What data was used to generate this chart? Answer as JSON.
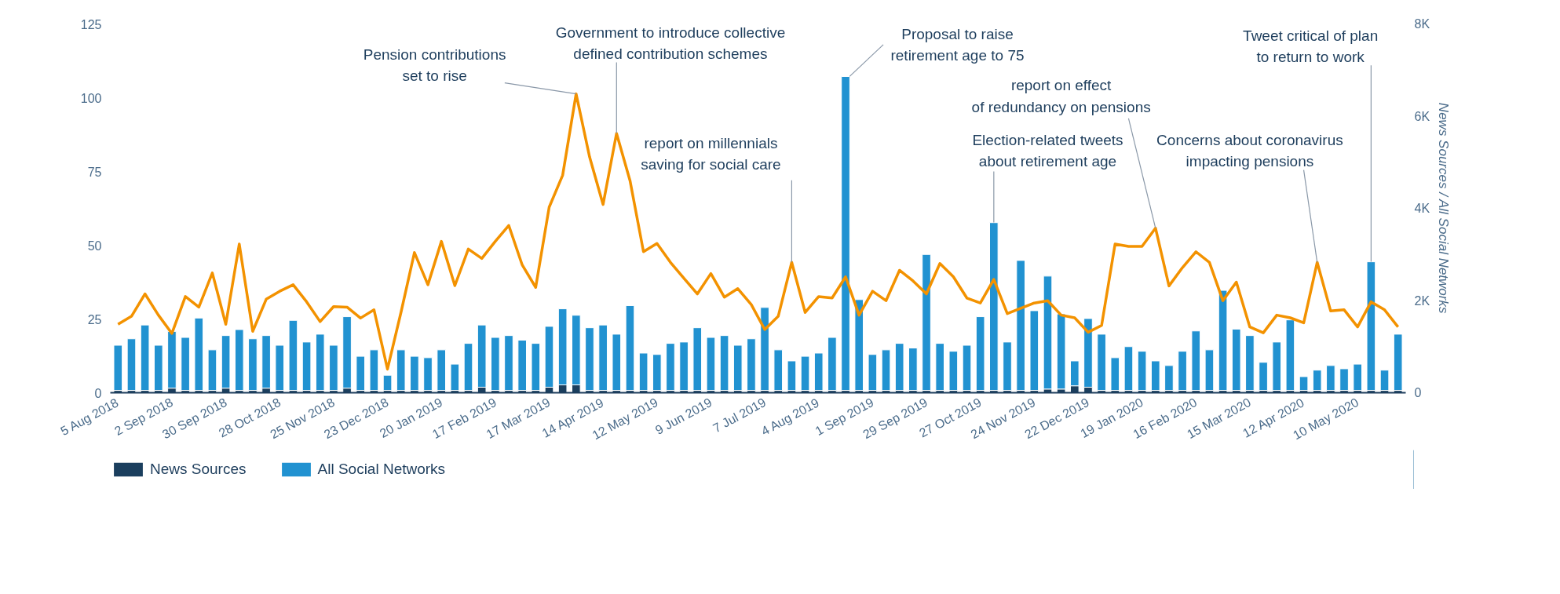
{
  "chart_data": {
    "type": "bar",
    "stacked": true,
    "legend": "bottom",
    "y2label": "News Sources / All Social Networks",
    "x": [
      "2018-08-05",
      "2018-08-12",
      "2018-08-19",
      "2018-08-26",
      "2018-09-02",
      "2018-09-09",
      "2018-09-16",
      "2018-09-23",
      "2018-09-30",
      "2018-10-07",
      "2018-10-14",
      "2018-10-21",
      "2018-10-28",
      "2018-11-04",
      "2018-11-11",
      "2018-11-18",
      "2018-11-25",
      "2018-12-02",
      "2018-12-09",
      "2018-12-16",
      "2018-12-23",
      "2018-12-30",
      "2019-01-06",
      "2019-01-13",
      "2019-01-20",
      "2019-01-27",
      "2019-02-03",
      "2019-02-10",
      "2019-02-17",
      "2019-02-24",
      "2019-03-03",
      "2019-03-10",
      "2019-03-17",
      "2019-03-24",
      "2019-03-31",
      "2019-04-07",
      "2019-04-14",
      "2019-04-21",
      "2019-04-28",
      "2019-05-05",
      "2019-05-12",
      "2019-05-19",
      "2019-05-26",
      "2019-06-02",
      "2019-06-09",
      "2019-06-16",
      "2019-06-23",
      "2019-06-30",
      "2019-07-07",
      "2019-07-14",
      "2019-07-21",
      "2019-07-28",
      "2019-08-04",
      "2019-08-11",
      "2019-08-18",
      "2019-08-25",
      "2019-09-01",
      "2019-09-08",
      "2019-09-15",
      "2019-09-22",
      "2019-09-29",
      "2019-10-06",
      "2019-10-13",
      "2019-10-20",
      "2019-10-27",
      "2019-11-03",
      "2019-11-10",
      "2019-11-17",
      "2019-11-24",
      "2019-12-01",
      "2019-12-08",
      "2019-12-15",
      "2019-12-22",
      "2019-12-29",
      "2020-01-05",
      "2020-01-12",
      "2020-01-19",
      "2020-01-26",
      "2020-02-02",
      "2020-02-09",
      "2020-02-16",
      "2020-02-23",
      "2020-03-01",
      "2020-03-08",
      "2020-03-15",
      "2020-03-22",
      "2020-03-29",
      "2020-04-05",
      "2020-04-12",
      "2020-04-19",
      "2020-04-26",
      "2020-05-03",
      "2020-05-10",
      "2020-05-17",
      "2020-05-24",
      "2020-05-31"
    ],
    "series": [
      {
        "name": "News Sources",
        "axis": "y2",
        "color": "#1b3f5e",
        "values": [
          50,
          50,
          50,
          50,
          100,
          50,
          50,
          50,
          100,
          50,
          50,
          100,
          50,
          50,
          50,
          50,
          50,
          100,
          50,
          50,
          50,
          50,
          50,
          50,
          50,
          50,
          50,
          120,
          50,
          50,
          50,
          50,
          120,
          170,
          170,
          50,
          50,
          50,
          50,
          50,
          50,
          50,
          50,
          50,
          50,
          50,
          50,
          50,
          50,
          50,
          50,
          50,
          50,
          50,
          50,
          50,
          50,
          50,
          50,
          50,
          50,
          50,
          50,
          50,
          50,
          50,
          50,
          50,
          50,
          80,
          80,
          150,
          120,
          50,
          50,
          50,
          50,
          50,
          50,
          50,
          50,
          50,
          50,
          50,
          50,
          50,
          50,
          50,
          50,
          50,
          50,
          50,
          50,
          50,
          50,
          50
        ]
      },
      {
        "name": "All Social Networks",
        "axis": "y2",
        "color": "#2192d1",
        "values": [
          980,
          1120,
          1420,
          980,
          1230,
          1150,
          1570,
          880,
          1140,
          1320,
          1120,
          1140,
          980,
          1520,
          1050,
          1220,
          980,
          1550,
          740,
          880,
          330,
          880,
          740,
          710,
          880,
          570,
          1020,
          1350,
          1150,
          1190,
          1090,
          1020,
          1320,
          1650,
          1510,
          1360,
          1420,
          1220,
          1840,
          810,
          780,
          1020,
          1050,
          1360,
          1150,
          1190,
          980,
          1120,
          1800,
          880,
          640,
          740,
          810,
          1150,
          6810,
          1970,
          780,
          880,
          1020,
          920,
          2950,
          1020,
          850,
          980,
          1600,
          3640,
          1050,
          2820,
          1730,
          2450,
          1630,
          540,
          1490,
          1220,
          710,
          950,
          850,
          640,
          540,
          850,
          1290,
          880,
          2170,
          1330,
          1190,
          610,
          1050,
          1530,
          300,
          440,
          540,
          470,
          570,
          2790,
          440,
          1220
        ]
      },
      {
        "type": "line",
        "color": "#f39200",
        "values": [
          23.2,
          25.9,
          33.5,
          26.3,
          20.1,
          32.6,
          29.0,
          40.6,
          23.2,
          50.4,
          20.8,
          31.7,
          34.4,
          36.6,
          30.8,
          24.1,
          29.2,
          29.0,
          25.3,
          28.1,
          8.0,
          27.2,
          47.5,
          36.6,
          51.3,
          36.3,
          48.7,
          45.5,
          51.3,
          56.7,
          43.3,
          35.7,
          62.9,
          73.7,
          101.3,
          79.9,
          63.8,
          87.9,
          71.9,
          47.8,
          50.6,
          44.2,
          38.8,
          33.5,
          40.4,
          32.4,
          35.3,
          29.9,
          21.4,
          25.9,
          44.2,
          27.2,
          32.6,
          32.1,
          39.3,
          26.3,
          34.4,
          31.2,
          41.5,
          37.9,
          33.5,
          43.8,
          39.3,
          32.1,
          30.4,
          38.4,
          26.8,
          28.6,
          30.4,
          31.2,
          26.3,
          25.4,
          20.5,
          22.8,
          50.4,
          49.6,
          49.6,
          55.8,
          36.2,
          42.4,
          47.8,
          44.2,
          31.2,
          37.5,
          22.3,
          20.3,
          26.3,
          25.4,
          23.7,
          44.2,
          27.7,
          28.1,
          22.3,
          30.8,
          28.1,
          22.3
        ]
      }
    ],
    "xlim": [
      "2018-08-01",
      "2020-06-04"
    ],
    "xticks": [
      {
        "value": "2018-08-05",
        "label": "5 Aug 2018"
      },
      {
        "value": "2018-09-02",
        "label": "2 Sep 2018"
      },
      {
        "value": "2018-09-30",
        "label": "30 Sep 2018"
      },
      {
        "value": "2018-10-28",
        "label": "28 Oct 2018"
      },
      {
        "value": "2018-11-25",
        "label": "25 Nov 2018"
      },
      {
        "value": "2018-12-23",
        "label": "23 Dec 2018"
      },
      {
        "value": "2019-01-20",
        "label": "20 Jan 2019"
      },
      {
        "value": "2019-02-17",
        "label": "17 Feb 2019"
      },
      {
        "value": "2019-03-17",
        "label": "17 Mar 2019"
      },
      {
        "value": "2019-04-14",
        "label": "14 Apr 2019"
      },
      {
        "value": "2019-05-12",
        "label": "12 May 2019"
      },
      {
        "value": "2019-06-09",
        "label": "9 Jun 2019"
      },
      {
        "value": "2019-07-07",
        "label": "7 Jul 2019"
      },
      {
        "value": "2019-08-04",
        "label": "4 Aug 2019"
      },
      {
        "value": "2019-09-01",
        "label": "1 Sep 2019"
      },
      {
        "value": "2019-09-29",
        "label": "29 Sep 2019"
      },
      {
        "value": "2019-10-27",
        "label": "27 Oct 2019"
      },
      {
        "value": "2019-11-24",
        "label": "24 Nov 2019"
      },
      {
        "value": "2019-12-22",
        "label": "22 Dec 2019"
      },
      {
        "value": "2020-01-19",
        "label": "19 Jan 2020"
      },
      {
        "value": "2020-02-16",
        "label": "16 Feb 2020"
      },
      {
        "value": "2020-03-15",
        "label": "15 Mar 2020"
      },
      {
        "value": "2020-04-12",
        "label": "12 Apr 2020"
      },
      {
        "value": "2020-05-10",
        "label": "10 May 2020"
      }
    ],
    "ylim": [
      0,
      125
    ],
    "yticks": [
      0,
      25,
      50,
      75,
      100,
      125
    ],
    "y2lim": [
      0,
      8000
    ],
    "y2ticks": [
      {
        "value": 0,
        "label": "0"
      },
      {
        "value": 2000,
        "label": "2K"
      },
      {
        "value": 4000,
        "label": "4K"
      },
      {
        "value": 6000,
        "label": "6K"
      },
      {
        "value": 8000,
        "label": "8K"
      }
    ],
    "annotations": [
      {
        "text": "Pension contributions\nset to rise",
        "x": "2019-03-31",
        "y": 101.3
      },
      {
        "text": "Government to introduce collective\ndefined contribution schemes",
        "x": "2019-04-21",
        "y": 87.9
      },
      {
        "text": "report on millennials\nsaving for social care",
        "x": "2019-07-21",
        "y": 44.2
      },
      {
        "text": "Proposal to raise\nretirement age to 75",
        "x": "2019-08-18",
        "y": 107.2
      },
      {
        "text": "Election-related tweets\nabout retirement age",
        "x": "2019-11-03",
        "y": 57.7
      },
      {
        "text": "report on effect\nof redundancy on pensions",
        "x": "2020-01-26",
        "y": 55.8
      },
      {
        "text": "Concerns about coronavirus\nimpacting pensions",
        "x": "2020-04-19",
        "y": 44.2
      },
      {
        "text": "Tweet critical of plan\nto return to work",
        "x": "2020-05-17",
        "y": 44.4
      }
    ]
  }
}
